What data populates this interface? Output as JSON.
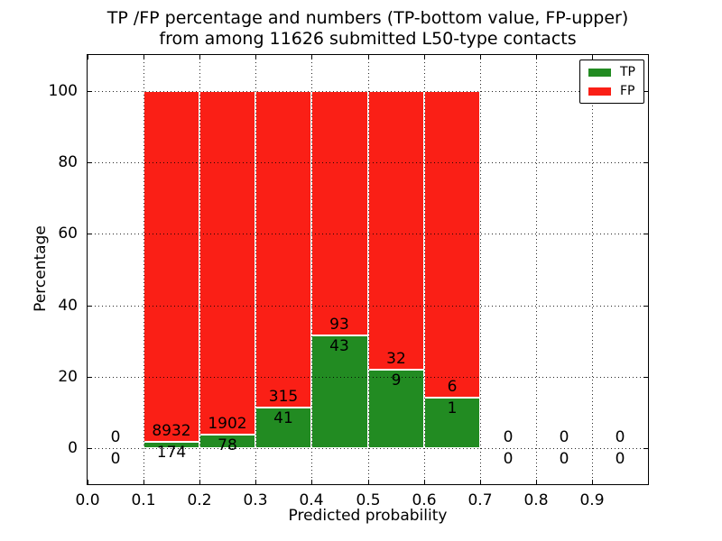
{
  "chart_data": {
    "type": "bar",
    "stacked": true,
    "title": "TP /FP percentage and numbers (TP-bottom value, FP-upper) from among 11626 submitted L50-type contacts",
    "title_line1": "TP /FP percentage and numbers (TP-bottom value, FP-upper)",
    "title_line2": "from among 11626 submitted L50-type contacts",
    "total_submitted_contacts": 11626,
    "xlabel": "Predicted probability",
    "ylabel": "Percentage",
    "xlim": [
      0.0,
      1.0
    ],
    "ylim": [
      -10,
      110
    ],
    "xticks": [
      "0.0",
      "0.1",
      "0.2",
      "0.3",
      "0.4",
      "0.5",
      "0.6",
      "0.7",
      "0.8",
      "0.9"
    ],
    "yticks": [
      "0",
      "20",
      "40",
      "60",
      "80",
      "100"
    ],
    "grid": true,
    "grid_style": "dotted-black-above-bars",
    "legend_position": "upper-right",
    "legend": [
      {
        "name": "TP",
        "color": "#228b22"
      },
      {
        "name": "FP",
        "color": "#fa1f16"
      }
    ],
    "colors": {
      "tp": "#228b22",
      "fp": "#fa1f16",
      "bar_edge": "#ffffff",
      "axes": "#000000"
    },
    "bins": [
      {
        "x0": 0.0,
        "x1": 0.1,
        "tp_count": 0,
        "fp_count": 0,
        "tp_pct": 0.0,
        "fp_pct": 0.0
      },
      {
        "x0": 0.1,
        "x1": 0.2,
        "tp_count": 174,
        "fp_count": 8932,
        "tp_pct": 1.91,
        "fp_pct": 98.09
      },
      {
        "x0": 0.2,
        "x1": 0.3,
        "tp_count": 78,
        "fp_count": 1902,
        "tp_pct": 3.94,
        "fp_pct": 96.06
      },
      {
        "x0": 0.3,
        "x1": 0.4,
        "tp_count": 41,
        "fp_count": 315,
        "tp_pct": 11.52,
        "fp_pct": 88.48
      },
      {
        "x0": 0.4,
        "x1": 0.5,
        "tp_count": 43,
        "fp_count": 93,
        "tp_pct": 31.62,
        "fp_pct": 68.38
      },
      {
        "x0": 0.5,
        "x1": 0.6,
        "tp_count": 9,
        "fp_count": 32,
        "tp_pct": 21.95,
        "fp_pct": 78.05
      },
      {
        "x0": 0.6,
        "x1": 0.7,
        "tp_count": 1,
        "fp_count": 6,
        "tp_pct": 14.29,
        "fp_pct": 85.71
      },
      {
        "x0": 0.7,
        "x1": 0.8,
        "tp_count": 0,
        "fp_count": 0,
        "tp_pct": 0.0,
        "fp_pct": 0.0
      },
      {
        "x0": 0.8,
        "x1": 0.9,
        "tp_count": 0,
        "fp_count": 0,
        "tp_pct": 0.0,
        "fp_pct": 0.0
      },
      {
        "x0": 0.9,
        "x1": 1.0,
        "tp_count": 0,
        "fp_count": 0,
        "tp_pct": 0.0,
        "fp_pct": 0.0
      }
    ]
  }
}
